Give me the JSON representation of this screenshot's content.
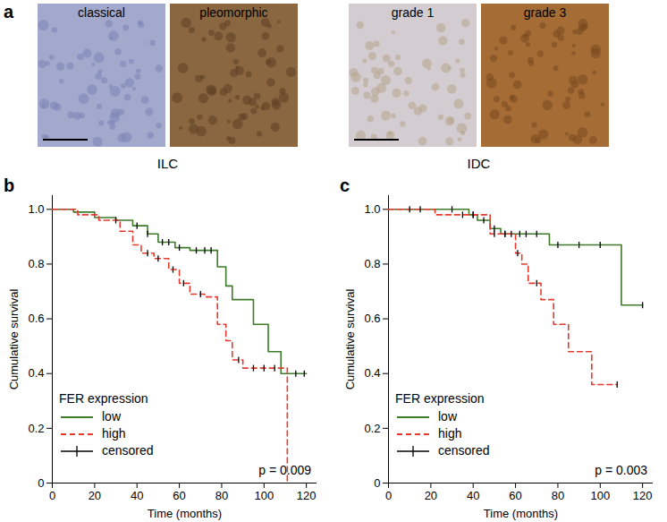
{
  "panel_a": {
    "label": "a",
    "images": [
      "classical",
      "pleomorphic",
      "grade 1",
      "grade 3"
    ],
    "groups": [
      "ILC",
      "IDC"
    ]
  },
  "chart_data": [
    {
      "type": "line",
      "title": "b",
      "x_label": "Time (months)",
      "y_label": "Cumulative survival",
      "xlim": [
        0,
        125
      ],
      "xticks": [
        0,
        20,
        40,
        60,
        80,
        100,
        120
      ],
      "ylim": [
        0,
        1.05
      ],
      "yticks": [
        0,
        0.2,
        0.4,
        0.6,
        0.8,
        {
          "value": 1,
          "label": "1.0"
        }
      ],
      "legend": "lower left",
      "legend_title": "FER expression",
      "annotation": "p = 0.009",
      "series": [
        {
          "name": "low",
          "color": "#3d7a2a",
          "line_style": "solid",
          "x": [
            0,
            10,
            20,
            30,
            38,
            45,
            50,
            58,
            65,
            78,
            82,
            85,
            90,
            95,
            102,
            108,
            120
          ],
          "values": [
            1,
            0.99,
            0.97,
            0.96,
            0.94,
            0.91,
            0.88,
            0.86,
            0.85,
            0.79,
            0.72,
            0.67,
            0.67,
            0.58,
            0.48,
            0.4,
            0.4
          ]
        },
        {
          "name": "high",
          "color": "#e53a2f",
          "line_style": "dashed",
          "x": [
            0,
            12,
            22,
            32,
            38,
            42,
            48,
            55,
            60,
            65,
            72,
            78,
            82,
            85,
            90,
            111,
            111
          ],
          "values": [
            1,
            0.98,
            0.96,
            0.92,
            0.87,
            0.84,
            0.82,
            0.78,
            0.73,
            0.69,
            0.68,
            0.58,
            0.52,
            0.45,
            0.42,
            0.42,
            0
          ]
        },
        {
          "name": "censored",
          "type": "scatter",
          "marker": "tick",
          "color": "#000000",
          "x": [
            30,
            40,
            45,
            52,
            55,
            60,
            68,
            72,
            75,
            115,
            119,
            45,
            50,
            57,
            62,
            70,
            88,
            95,
            100,
            105
          ],
          "values": [
            0.96,
            0.94,
            0.91,
            0.88,
            0.88,
            0.86,
            0.85,
            0.85,
            0.85,
            0.4,
            0.4,
            0.84,
            0.82,
            0.78,
            0.73,
            0.69,
            0.45,
            0.42,
            0.42,
            0.42
          ]
        }
      ]
    },
    {
      "type": "line",
      "title": "c",
      "x_label": "Time (months)",
      "y_label": "Cumulative survival",
      "xlim": [
        0,
        125
      ],
      "xticks": [
        0,
        20,
        40,
        60,
        80,
        100,
        120
      ],
      "ylim": [
        0,
        1.05
      ],
      "yticks": [
        0,
        0.2,
        0.4,
        0.6,
        0.8,
        {
          "value": 1,
          "label": "1.0"
        }
      ],
      "legend": "lower left",
      "legend_title": "FER expression",
      "annotation": "p = 0.003",
      "series": [
        {
          "name": "low",
          "color": "#3d7a2a",
          "line_style": "solid",
          "x": [
            0,
            35,
            38,
            42,
            48,
            53,
            76,
            110,
            120
          ],
          "values": [
            1,
            1,
            0.98,
            0.96,
            0.93,
            0.91,
            0.87,
            0.65,
            0.65
          ]
        },
        {
          "name": "high",
          "color": "#e53a2f",
          "line_style": "dashed",
          "x": [
            0,
            22,
            48,
            60,
            63,
            66,
            72,
            78,
            85,
            96,
            108
          ],
          "values": [
            1,
            0.98,
            0.91,
            0.84,
            0.8,
            0.73,
            0.67,
            0.58,
            0.48,
            0.36,
            0.36
          ]
        },
        {
          "name": "censored",
          "type": "scatter",
          "marker": "tick",
          "color": "#000000",
          "x": [
            10,
            30,
            40,
            45,
            50,
            55,
            58,
            62,
            65,
            70,
            80,
            90,
            100,
            120,
            15,
            35,
            40,
            50,
            55,
            61,
            70,
            108
          ],
          "values": [
            1,
            1,
            0.98,
            0.96,
            0.93,
            0.91,
            0.91,
            0.91,
            0.91,
            0.91,
            0.87,
            0.87,
            0.87,
            0.65,
            1,
            0.98,
            0.98,
            0.91,
            0.91,
            0.84,
            0.73,
            0.36
          ]
        }
      ]
    }
  ]
}
